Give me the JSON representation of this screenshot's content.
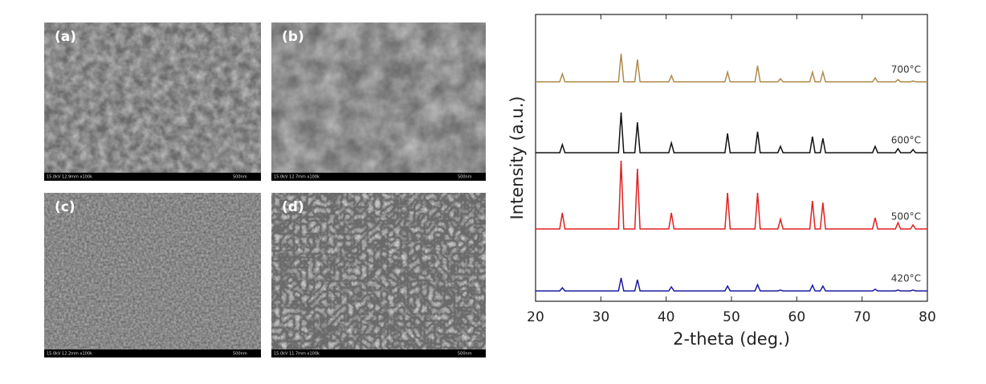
{
  "images": [
    {
      "label": "(a)",
      "info": "15.0kV 12.9mm x100k",
      "scale": "500nm"
    },
    {
      "label": "(b)",
      "info": "15.0kV 12.7mm x100k",
      "scale": "500nm"
    },
    {
      "label": "(c)",
      "info": "15.0kV 12.2mm x100k",
      "scale": "500nm"
    },
    {
      "label": "(d)",
      "info": "15.0kV 11.7mm x100k",
      "scale": "500nm"
    }
  ],
  "chart_data": {
    "type": "line",
    "xlabel": "2-theta (deg.)",
    "ylabel": "Intensity (a.u.)",
    "x": [
      20,
      23.7,
      24.1,
      24.5,
      32.7,
      33.1,
      33.5,
      35.2,
      35.6,
      36.0,
      40.4,
      40.8,
      41.2,
      49.0,
      49.4,
      49.8,
      53.6,
      54.0,
      54.4,
      57.1,
      57.5,
      57.9,
      62.0,
      62.4,
      62.8,
      63.6,
      64.0,
      64.4,
      71.6,
      72.0,
      72.4,
      75.1,
      75.5,
      75.9,
      77.4,
      77.8,
      78.2,
      80
    ],
    "xlim": [
      20,
      80
    ],
    "xticks": [
      20,
      30,
      40,
      50,
      60,
      70,
      80
    ],
    "ylim": [
      0,
      100
    ],
    "series": [
      {
        "name": "700°C",
        "color": "#b08a4a",
        "values": [
          76.5,
          76.5,
          79.3,
          76.5,
          76.5,
          86.3,
          76.5,
          76.5,
          84.3,
          76.5,
          76.5,
          78.7,
          76.5,
          76.5,
          79.9,
          76.5,
          76.5,
          82.1,
          76.5,
          76.5,
          77.6,
          76.5,
          76.5,
          79.9,
          76.5,
          76.5,
          79.9,
          76.5,
          76.5,
          77.9,
          76.5,
          76.5,
          77.3,
          76.5,
          76.5,
          76.8,
          76.5,
          76.5
        ]
      },
      {
        "name": "600°C",
        "color": "#111111",
        "values": [
          51.8,
          51.8,
          54.6,
          51.8,
          51.8,
          65.8,
          51.8,
          51.8,
          62.4,
          51.8,
          51.8,
          55.2,
          51.8,
          51.8,
          58.5,
          51.8,
          51.8,
          59.1,
          51.8,
          51.8,
          54.0,
          51.8,
          51.8,
          57.4,
          51.8,
          51.8,
          56.8,
          51.8,
          51.8,
          54.0,
          51.8,
          51.8,
          53.2,
          51.8,
          51.8,
          52.9,
          51.8,
          51.8
        ]
      },
      {
        "name": "500°C",
        "color": "#e02020",
        "values": [
          25.2,
          25.2,
          30.8,
          25.2,
          25.2,
          49.0,
          25.2,
          25.2,
          46.2,
          25.2,
          25.2,
          30.8,
          25.2,
          25.2,
          37.8,
          25.2,
          25.2,
          37.8,
          25.2,
          25.2,
          28.6,
          25.2,
          25.2,
          35.0,
          25.2,
          25.2,
          34.4,
          25.2,
          25.2,
          29.1,
          25.2,
          25.2,
          27.4,
          25.2,
          25.2,
          26.6,
          25.2,
          25.2
        ]
      },
      {
        "name": "420°C",
        "color": "#1a1aa0",
        "values": [
          3.6,
          3.6,
          4.7,
          3.6,
          3.6,
          8.1,
          3.6,
          3.6,
          7.5,
          3.6,
          3.6,
          5.0,
          3.6,
          3.6,
          5.3,
          3.6,
          3.6,
          5.8,
          3.6,
          3.6,
          3.9,
          3.6,
          3.6,
          5.6,
          3.6,
          3.6,
          5.3,
          3.6,
          3.6,
          4.2,
          3.6,
          3.6,
          3.9,
          3.6,
          3.6,
          3.9,
          3.6,
          3.6
        ]
      }
    ]
  }
}
